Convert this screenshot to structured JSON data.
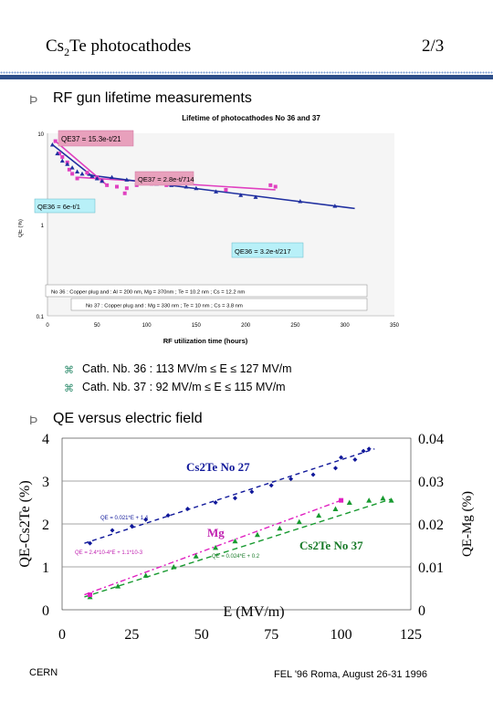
{
  "header": {
    "title_main": "Cs",
    "title_sub": "2",
    "title_rest": "Te photocathodes",
    "page": "2/3"
  },
  "section1": {
    "bullet": "Ϸ",
    "heading": "RF gun lifetime measurements",
    "sub_icon": "⌘",
    "items": [
      "Cath. Nb. 36 : 113 MV/m ≤ E ≤ 127 MV/m",
      "Cath. Nb. 37 : 92 MV/m ≤ E ≤ 115 MV/m"
    ]
  },
  "section2": {
    "bullet": "Ϸ",
    "heading": "QE versus electric field"
  },
  "footer": {
    "left": "CERN",
    "right": "FEL '96 Roma, August 26-31 1996"
  },
  "chart_data": [
    {
      "type": "scatter",
      "title": "Lifetime of photocathodes No 36 and 37",
      "xlabel": "RF utilization time (hours)",
      "ylabel": "QE (%)",
      "xlim": [
        0,
        350
      ],
      "ylim": [
        1,
        10
      ],
      "yscale": "log",
      "xticks": [
        "0",
        "50",
        "100",
        "150",
        "200",
        "250",
        "300",
        "350"
      ],
      "yticks": [
        "10",
        "1",
        "0.1"
      ],
      "annotations": [
        "QE37 = 15.3e-t/21",
        "QE37 = 2.8e-t/714",
        "QE36 = 6e-t/1",
        "QE36 = 3.2e-t/217"
      ],
      "notes": [
        "No 36 : Copper plug and : Al = 200 nm, Mg = 370nm ; Te = 10.2 nm ; Cs = 12.2 nm",
        "No 37 : Copper plug and : Mg = 330 nm ; Te = 10 nm ; Cs = 3.8 nm"
      ],
      "series": [
        {
          "name": "No 37",
          "color": "#e040c0",
          "x": [
            8,
            12,
            15,
            20,
            22,
            25,
            30,
            40,
            50,
            55,
            60,
            70,
            78,
            80,
            90,
            100,
            105,
            120,
            180,
            225,
            230
          ],
          "y": [
            8.2,
            6.0,
            5.5,
            4.8,
            4.0,
            3.6,
            3.2,
            3.7,
            3.3,
            3.0,
            2.7,
            2.6,
            2.2,
            2.5,
            2.7,
            2.9,
            2.8,
            2.7,
            2.4,
            2.7,
            2.6
          ]
        },
        {
          "name": "No 36",
          "color": "#2030a0",
          "x": [
            5,
            10,
            15,
            20,
            25,
            30,
            35,
            45,
            50,
            55,
            65,
            80,
            95,
            110,
            125,
            140,
            150,
            170,
            195,
            210,
            255,
            290
          ],
          "y": [
            7.5,
            6.0,
            5.0,
            4.6,
            4.2,
            3.8,
            3.6,
            3.4,
            3.2,
            3.0,
            3.3,
            3.1,
            2.9,
            2.8,
            2.7,
            2.6,
            2.5,
            2.3,
            2.1,
            2.0,
            1.8,
            1.6
          ]
        }
      ]
    },
    {
      "type": "scatter",
      "xlabel": "E (MV/m)",
      "ylabel": "QE-Cs2Te (%)",
      "ylabel_right": "QE-Mg (%)",
      "xlim": [
        0,
        125
      ],
      "ylim": [
        0,
        4
      ],
      "ylim_right": [
        0,
        0.04
      ],
      "xticks": [
        "0",
        "25",
        "50",
        "75",
        "100",
        "125"
      ],
      "yticks": [
        "0",
        "1",
        "2",
        "3",
        "4"
      ],
      "yticks_right": [
        "0",
        "0.01",
        "0.02",
        "0.03",
        "0.04"
      ],
      "labels": [
        "Cs2Te No 27",
        "Mg",
        "Cs2Te No 37"
      ],
      "fit_labels": [
        "QE = 0.021*E + 1.4",
        "QE = 2.4*10-4*E + 1.1*10-3",
        "QE = 0.024*E + 0.2"
      ],
      "series": [
        {
          "name": "Cs2Te No 27",
          "color": "#10189a",
          "x": [
            10,
            18,
            25,
            30,
            38,
            45,
            55,
            62,
            68,
            75,
            82,
            90,
            98,
            100,
            105,
            108,
            110
          ],
          "y": [
            1.55,
            1.85,
            1.95,
            2.1,
            2.2,
            2.35,
            2.5,
            2.6,
            2.75,
            2.9,
            3.05,
            3.15,
            3.3,
            3.55,
            3.5,
            3.7,
            3.75
          ]
        },
        {
          "name": "Cs2Te No 37",
          "color": "#189a30",
          "x": [
            10,
            20,
            30,
            40,
            48,
            55,
            62,
            70,
            78,
            85,
            92,
            98,
            103,
            110,
            115,
            118
          ],
          "y": [
            0.3,
            0.55,
            0.8,
            1.0,
            1.25,
            1.45,
            1.6,
            1.75,
            1.9,
            2.05,
            2.2,
            2.35,
            2.5,
            2.55,
            2.6,
            2.55
          ]
        },
        {
          "name": "Mg",
          "color": "#e020c0",
          "x": [
            10,
            100
          ],
          "y": [
            0.0035,
            0.0255
          ]
        }
      ]
    }
  ]
}
